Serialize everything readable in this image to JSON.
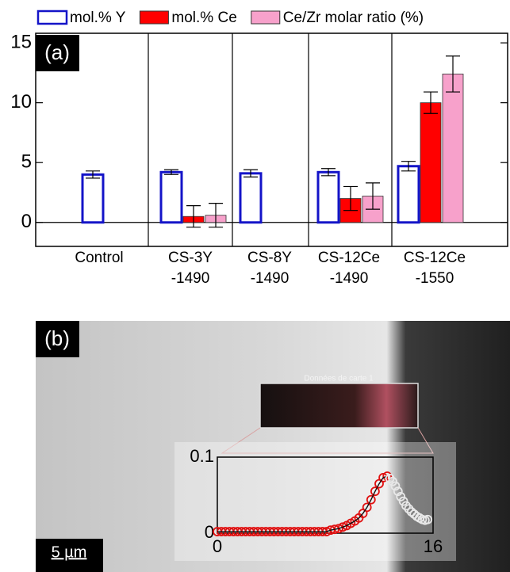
{
  "chart_data": [
    {
      "type": "bar",
      "panel_label": "(a)",
      "categories": [
        "Control",
        "CS-3Y\n-1490",
        "CS-8Y\n-1490",
        "CS-12Ce\n-1490",
        "CS-12Ce\n-1550"
      ],
      "series": [
        {
          "name": "mol.% Y",
          "color": "#1414c8",
          "style": "outline",
          "values": [
            4.0,
            4.2,
            4.1,
            4.2,
            4.7
          ],
          "errors": [
            0.3,
            0.2,
            0.3,
            0.3,
            0.4
          ]
        },
        {
          "name": "mol.% Ce",
          "color": "#ff0000",
          "style": "filled",
          "values": [
            null,
            0.5,
            null,
            2.0,
            10.0
          ],
          "errors": [
            null,
            0.9,
            null,
            1.0,
            0.9
          ]
        },
        {
          "name": "Ce/Zr molar ratio (%)",
          "color": "#f7a1cb",
          "style": "filled",
          "values": [
            null,
            0.6,
            null,
            2.2,
            12.4
          ],
          "errors": [
            null,
            1.0,
            null,
            1.1,
            1.5
          ]
        }
      ],
      "ylim": [
        -2,
        15.8
      ],
      "yticks": [
        0,
        5,
        10,
        15
      ]
    },
    {
      "type": "scatter",
      "panel_label": "(b)",
      "map_title": "Données de carte 1",
      "scale_bar": "5 µm",
      "xlim": [
        0,
        16
      ],
      "ylim": [
        0,
        0.1
      ],
      "xticks": [
        0,
        16
      ],
      "yticks": [
        0,
        0.1
      ],
      "series": [
        {
          "color": "#e01010",
          "line": true,
          "x": [
            0,
            0.3,
            0.6,
            0.9,
            1.2,
            1.5,
            1.8,
            2.1,
            2.4,
            2.7,
            3.0,
            3.3,
            3.6,
            3.9,
            4.2,
            4.5,
            4.8,
            5.1,
            5.4,
            5.7,
            6.0,
            6.3,
            6.6,
            6.9,
            7.2,
            7.5,
            7.8,
            8.1,
            8.4,
            8.7,
            9.0,
            9.3,
            9.6,
            9.9,
            10.2,
            10.5,
            10.8,
            11.1,
            11.4,
            11.7,
            12.0,
            12.3,
            12.6
          ],
          "values": [
            0.002,
            0.002,
            0.002,
            0.002,
            0.002,
            0.002,
            0.002,
            0.002,
            0.002,
            0.002,
            0.002,
            0.002,
            0.002,
            0.002,
            0.002,
            0.002,
            0.002,
            0.002,
            0.002,
            0.002,
            0.002,
            0.002,
            0.002,
            0.002,
            0.002,
            0.002,
            0.002,
            0.002,
            0.004,
            0.005,
            0.006,
            0.008,
            0.01,
            0.013,
            0.016,
            0.02,
            0.026,
            0.034,
            0.044,
            0.055,
            0.065,
            0.073,
            0.075
          ]
        },
        {
          "color": "#e8e8e8",
          "line": false,
          "x": [
            12.8,
            13.0,
            13.2,
            13.4,
            13.6,
            13.8,
            14.0,
            14.2,
            14.4,
            14.6,
            14.8,
            15.0,
            15.2,
            15.4,
            15.6
          ],
          "values": [
            0.072,
            0.068,
            0.062,
            0.055,
            0.048,
            0.042,
            0.036,
            0.032,
            0.028,
            0.025,
            0.022,
            0.02,
            0.018,
            0.017,
            0.018
          ]
        }
      ]
    }
  ]
}
